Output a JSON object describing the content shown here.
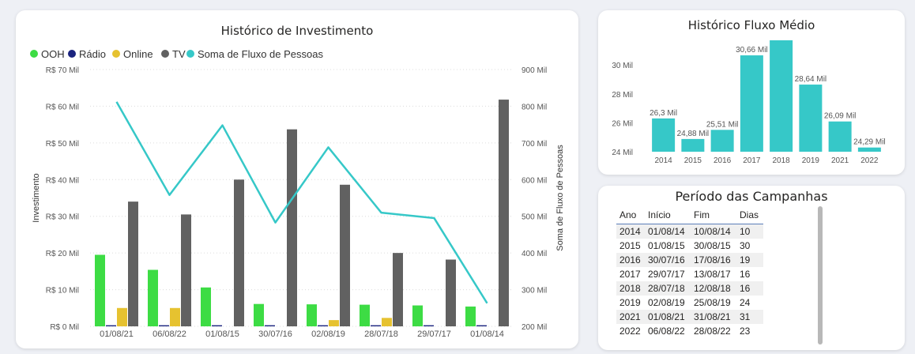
{
  "historico_investimento": {
    "title": "Histórico de Investimento",
    "legend": [
      {
        "name": "OOH",
        "color": "#3ddc44"
      },
      {
        "name": "Rádio",
        "color": "#1a237e"
      },
      {
        "name": "Online",
        "color": "#e6c230"
      },
      {
        "name": "TV",
        "color": "#616161"
      },
      {
        "name": "Soma de Fluxo de Pessoas",
        "color": "#36c8c8"
      }
    ],
    "ylabel_left": "Investimento",
    "ylabel_right": "Soma de Fluxo de Pessoas",
    "y_ticks_left": [
      "R$ 0 Mil",
      "R$ 10 Mil",
      "R$ 20 Mil",
      "R$ 30 Mil",
      "R$ 40 Mil",
      "R$ 50 Mil",
      "R$ 60 Mil",
      "R$ 70 Mil"
    ],
    "y_ticks_right": [
      "200 Mil",
      "300 Mil",
      "400 Mil",
      "500 Mil",
      "600 Mil",
      "700 Mil",
      "800 Mil",
      "900 Mil"
    ]
  },
  "historico_fluxo": {
    "title": "Histórico Fluxo Médio",
    "y_ticks": [
      "24 Mil",
      "26 Mil",
      "28 Mil",
      "30 Mil"
    ]
  },
  "periodo": {
    "title": "Período das Campanhas",
    "columns": [
      "Ano",
      "Início",
      "Fim",
      "Dias"
    ],
    "rows": [
      [
        "2014",
        "01/08/14",
        "10/08/14",
        "10"
      ],
      [
        "2015",
        "01/08/15",
        "30/08/15",
        "30"
      ],
      [
        "2016",
        "30/07/16",
        "17/08/16",
        "19"
      ],
      [
        "2017",
        "29/07/17",
        "13/08/17",
        "16"
      ],
      [
        "2018",
        "28/07/18",
        "12/08/18",
        "16"
      ],
      [
        "2019",
        "02/08/19",
        "25/08/19",
        "24"
      ],
      [
        "2021",
        "01/08/21",
        "31/08/21",
        "31"
      ],
      [
        "2022",
        "06/08/22",
        "28/08/22",
        "23"
      ]
    ]
  },
  "chart_data": [
    {
      "type": "bar",
      "title": "Histórico de Investimento",
      "xlabel": "",
      "ylabel": "Investimento",
      "ylim": [
        0,
        70000
      ],
      "y2label": "Soma de Fluxo de Pessoas",
      "y2lim": [
        200000,
        900000
      ],
      "legend": "top-left",
      "grid": true,
      "categories": [
        "01/08/21",
        "06/08/22",
        "01/08/15",
        "30/07/16",
        "02/08/19",
        "28/07/18",
        "29/07/17",
        "01/08/14"
      ],
      "series": [
        {
          "name": "OOH",
          "type": "bar",
          "axis": "left",
          "values": [
            19500,
            15400,
            10600,
            6100,
            6000,
            5900,
            5700,
            5400
          ]
        },
        {
          "name": "Rádio",
          "type": "bar",
          "axis": "left",
          "values": [
            300,
            300,
            300,
            300,
            300,
            300,
            300,
            300
          ]
        },
        {
          "name": "Online",
          "type": "bar",
          "axis": "left",
          "values": [
            5000,
            5000,
            0,
            0,
            1700,
            2300,
            0,
            0
          ]
        },
        {
          "name": "TV",
          "type": "bar",
          "axis": "left",
          "values": [
            34000,
            30500,
            40000,
            53700,
            38600,
            20000,
            18200,
            61800
          ]
        },
        {
          "name": "Soma de Fluxo de Pessoas",
          "type": "line",
          "axis": "right",
          "values": [
            812000,
            558000,
            748000,
            483000,
            688000,
            510000,
            495000,
            263000
          ]
        }
      ]
    },
    {
      "type": "bar",
      "title": "Histórico Fluxo Médio",
      "xlabel": "",
      "ylabel": "",
      "ylim": [
        24000,
        31700
      ],
      "grid": false,
      "categories": [
        "2014",
        "2015",
        "2016",
        "2017",
        "2018",
        "2019",
        "2021",
        "2022"
      ],
      "series": [
        {
          "name": "",
          "values": [
            26300,
            24880,
            25510,
            30660,
            31700,
            28640,
            26090,
            24290
          ],
          "labels": [
            "26,3 Mil",
            "24,88 Mil",
            "25,51 Mil",
            "30,66 Mil",
            "",
            "28,64 Mil",
            "26,09 Mil",
            "24,29 Mil"
          ]
        }
      ]
    }
  ]
}
